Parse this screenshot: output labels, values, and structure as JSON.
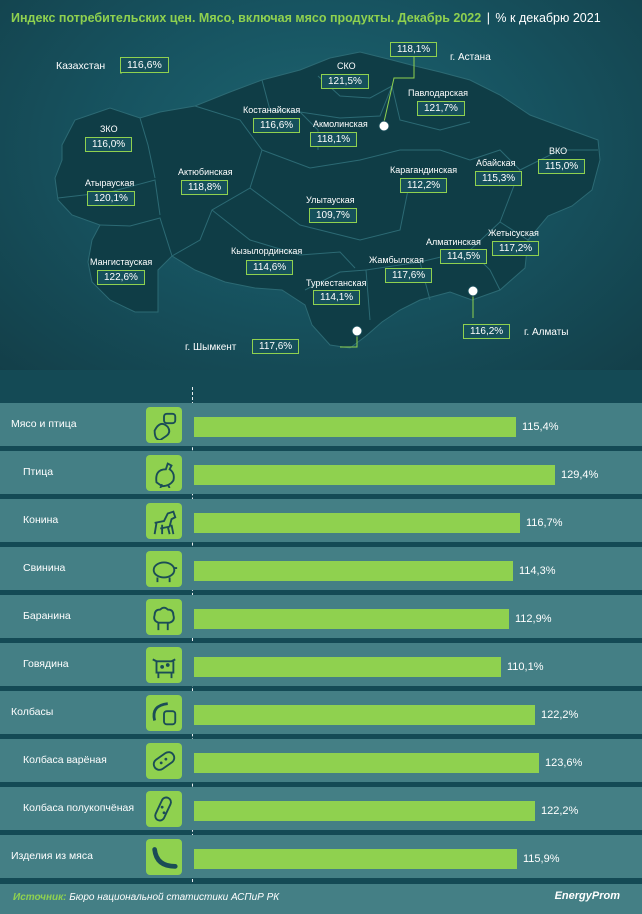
{
  "title": {
    "main": "Индекс потребительских цен. Мясо, включая мясо продукты. Декабрь 2022",
    "sep": "|",
    "unit": "% к декабрю 2021"
  },
  "map": {
    "kazakhstan": {
      "name": "Казахстан",
      "value": "116,6%"
    },
    "regions": [
      {
        "id": "zko",
        "name": "ЗКО",
        "value": "116,0%"
      },
      {
        "id": "atyrau",
        "name": "Атырауская",
        "value": "120,1%"
      },
      {
        "id": "mangystau",
        "name": "Мангистауская",
        "value": "122,6%"
      },
      {
        "id": "aktobe",
        "name": "Актюбинская",
        "value": "118,8%"
      },
      {
        "id": "kostanay",
        "name": "Костанайская",
        "value": "116,6%"
      },
      {
        "id": "sko",
        "name": "СКО",
        "value": "121,5%"
      },
      {
        "id": "akmola",
        "name": "Акмолинская",
        "value": "118,1%"
      },
      {
        "id": "pavlodar",
        "name": "Павлодарская",
        "value": "121,7%"
      },
      {
        "id": "karaganda",
        "name": "Карагандинская",
        "value": "112,2%"
      },
      {
        "id": "ulytau",
        "name": "Улытауская",
        "value": "109,7%"
      },
      {
        "id": "kyzylorda",
        "name": "Кызылординская",
        "value": "114,6%"
      },
      {
        "id": "turkestan",
        "name": "Туркестанская",
        "value": "114,1%"
      },
      {
        "id": "zhambyl",
        "name": "Жамбылская",
        "value": "117,6%"
      },
      {
        "id": "almaty_reg",
        "name": "Алматинская",
        "value": "114,5%"
      },
      {
        "id": "zhetysu",
        "name": "Жетысуская",
        "value": "117,2%"
      },
      {
        "id": "abai",
        "name": "Абайская",
        "value": "115,3%"
      },
      {
        "id": "vko",
        "name": "ВКО",
        "value": "115,0%"
      }
    ],
    "cities": [
      {
        "id": "astana",
        "name": "г. Астана",
        "value": "118,1%"
      },
      {
        "id": "almaty",
        "name": "г. Алматы",
        "value": "116,2%"
      },
      {
        "id": "shymkent",
        "name": "г. Шымкент",
        "value": "117,6%"
      }
    ]
  },
  "colors": {
    "accent": "#8fd14f",
    "background": "#144a55",
    "row": "#447f85"
  },
  "chart_data": {
    "type": "bar",
    "orientation": "horizontal",
    "categories": [
      "Мясо и птица",
      "Птица",
      "Конина",
      "Свинина",
      "Баранина",
      "Говядина",
      "Колбасы",
      "Колбаса варёная",
      "Колбаса полукопчёная",
      "Изделия из мяса"
    ],
    "values": [
      115.4,
      129.4,
      116.7,
      114.3,
      112.9,
      110.1,
      122.2,
      123.6,
      122.2,
      115.9
    ],
    "value_labels": [
      "115,4%",
      "129,4%",
      "116,7%",
      "114,3%",
      "112,9%",
      "110,1%",
      "122,2%",
      "123,6%",
      "122,2%",
      "115,9%"
    ],
    "icons": [
      "meat-poultry-icon",
      "chicken-icon",
      "horse-icon",
      "pig-icon",
      "sheep-icon",
      "cow-icon",
      "sausages-icon",
      "boiled-sausage-icon",
      "smoked-sausage-icon",
      "meat-product-icon"
    ],
    "subcategory": [
      false,
      true,
      true,
      true,
      true,
      true,
      false,
      true,
      true,
      false
    ],
    "xlim": [
      0,
      130
    ],
    "grid": false
  },
  "footer": {
    "source_label": "Источник:",
    "source_text": "Бюро национальной статистики АСПиР РК",
    "brand": "EnergyProm"
  }
}
